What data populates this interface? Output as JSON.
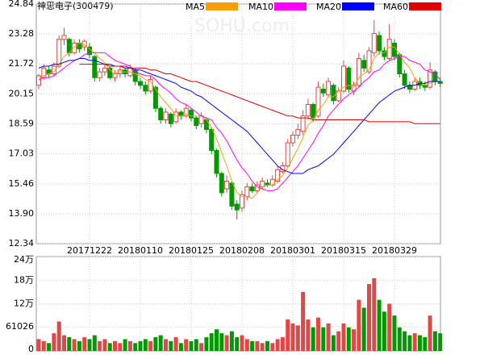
{
  "chart_data": [
    {
      "type": "candlestick",
      "title": "神思电子(300479)",
      "watermark": "SOHU.com",
      "up_color": "#e04848",
      "down_color": "#009a00",
      "grid": true,
      "ylim": [
        12.34,
        24.84
      ],
      "yticks": [
        24.84,
        23.28,
        21.72,
        20.15,
        18.59,
        17.03,
        15.46,
        {
          "value": 13.9,
          "label": "13.90"
        },
        12.34
      ],
      "categories": [
        null,
        null,
        null,
        null,
        null,
        null,
        null,
        null,
        null,
        null,
        "20171222",
        null,
        null,
        null,
        null,
        null,
        null,
        null,
        null,
        null,
        "20180110",
        null,
        null,
        null,
        null,
        null,
        null,
        null,
        null,
        null,
        "20180125",
        null,
        null,
        null,
        null,
        null,
        null,
        null,
        null,
        null,
        "20180208",
        null,
        null,
        null,
        null,
        null,
        null,
        null,
        null,
        null,
        "20180301",
        null,
        null,
        null,
        null,
        null,
        null,
        null,
        null,
        null,
        "20180315",
        null,
        null,
        null,
        null,
        null,
        null,
        null,
        null,
        null,
        "20180329",
        null,
        null,
        null,
        null,
        null,
        null,
        null,
        null,
        null
      ],
      "ohlc": [
        [
          20.6,
          21.2,
          20.4,
          21.1
        ],
        [
          21.0,
          21.7,
          20.9,
          21.5
        ],
        [
          21.4,
          21.6,
          21.0,
          21.2
        ],
        [
          21.2,
          21.8,
          21.1,
          21.6
        ],
        [
          21.6,
          23.2,
          21.5,
          23.0
        ],
        [
          23.0,
          23.6,
          22.7,
          23.2
        ],
        [
          23.0,
          23.1,
          22.1,
          22.3
        ],
        [
          22.3,
          23.0,
          22.2,
          22.8
        ],
        [
          22.8,
          23.0,
          22.3,
          22.5
        ],
        [
          22.6,
          23.0,
          22.4,
          22.9
        ],
        [
          22.6,
          22.8,
          22.0,
          22.2
        ],
        [
          22.1,
          22.2,
          20.8,
          21.0
        ],
        [
          21.0,
          21.5,
          20.8,
          21.3
        ],
        [
          21.3,
          21.7,
          21.1,
          21.5
        ],
        [
          21.5,
          21.6,
          20.9,
          21.0
        ],
        [
          21.0,
          21.4,
          20.8,
          21.2
        ],
        [
          21.2,
          21.6,
          21.0,
          21.4
        ],
        [
          21.4,
          21.5,
          21.0,
          21.2
        ],
        [
          21.1,
          21.7,
          21.0,
          21.5
        ],
        [
          21.4,
          21.5,
          20.6,
          20.8
        ],
        [
          20.8,
          21.0,
          20.4,
          20.6
        ],
        [
          20.6,
          20.8,
          20.1,
          20.3
        ],
        [
          20.3,
          21.1,
          20.2,
          20.9
        ],
        [
          20.5,
          20.6,
          19.2,
          19.4
        ],
        [
          19.4,
          19.5,
          18.6,
          18.8
        ],
        [
          18.8,
          19.4,
          18.6,
          19.2
        ],
        [
          19.1,
          19.2,
          18.4,
          18.6
        ],
        [
          18.7,
          19.4,
          18.6,
          19.2
        ],
        [
          19.2,
          19.3,
          18.8,
          19.0
        ],
        [
          19.0,
          19.6,
          18.9,
          19.4
        ],
        [
          19.3,
          19.4,
          18.7,
          18.9
        ],
        [
          18.9,
          19.0,
          18.3,
          18.5
        ],
        [
          18.6,
          19.2,
          18.4,
          19.0
        ],
        [
          18.8,
          18.9,
          18.1,
          18.3
        ],
        [
          18.3,
          18.4,
          17.0,
          17.2
        ],
        [
          17.2,
          17.3,
          15.8,
          16.0
        ],
        [
          16.0,
          16.1,
          14.8,
          15.0
        ],
        [
          15.2,
          15.9,
          15.0,
          15.6
        ],
        [
          15.5,
          15.6,
          14.1,
          14.3
        ],
        [
          14.4,
          14.6,
          13.6,
          14.1
        ],
        [
          14.2,
          15.1,
          14.0,
          14.9
        ],
        [
          14.8,
          15.5,
          14.6,
          15.3
        ],
        [
          15.3,
          15.5,
          15.0,
          15.1
        ],
        [
          15.1,
          15.6,
          15.0,
          15.4
        ],
        [
          15.3,
          15.8,
          15.2,
          15.6
        ],
        [
          15.5,
          15.7,
          15.3,
          15.4
        ],
        [
          15.4,
          15.9,
          15.3,
          15.7
        ],
        [
          15.6,
          16.4,
          15.5,
          16.2
        ],
        [
          16.1,
          16.6,
          16.0,
          16.4
        ],
        [
          16.4,
          17.8,
          16.3,
          17.6
        ],
        [
          17.6,
          18.2,
          17.4,
          18.0
        ],
        [
          18.0,
          18.6,
          17.8,
          18.3
        ],
        [
          18.2,
          19.3,
          18.0,
          19.0
        ],
        [
          19.0,
          19.9,
          18.8,
          19.6
        ],
        [
          19.6,
          19.7,
          18.7,
          18.9
        ],
        [
          19.0,
          20.8,
          18.9,
          20.5
        ],
        [
          20.4,
          20.7,
          20.0,
          20.2
        ],
        [
          20.1,
          21.0,
          20.0,
          20.8
        ],
        [
          20.6,
          20.7,
          19.6,
          19.8
        ],
        [
          19.8,
          20.5,
          19.7,
          20.3
        ],
        [
          20.3,
          21.9,
          20.2,
          21.6
        ],
        [
          21.5,
          21.6,
          20.2,
          20.4
        ],
        [
          20.3,
          20.8,
          20.1,
          20.6
        ],
        [
          20.6,
          22.3,
          20.5,
          22.0
        ],
        [
          21.9,
          22.2,
          21.3,
          21.5
        ],
        [
          21.3,
          22.6,
          21.2,
          22.4
        ],
        [
          22.3,
          24.0,
          22.1,
          23.3
        ],
        [
          23.2,
          23.4,
          22.2,
          22.4
        ],
        [
          22.4,
          22.6,
          21.9,
          22.1
        ],
        [
          22.0,
          23.8,
          21.9,
          23.0
        ],
        [
          22.8,
          23.0,
          21.9,
          22.1
        ],
        [
          22.2,
          22.3,
          21.0,
          21.2
        ],
        [
          21.2,
          21.4,
          20.4,
          20.6
        ],
        [
          20.6,
          20.8,
          20.2,
          20.4
        ],
        [
          20.4,
          21.0,
          20.3,
          20.8
        ],
        [
          20.8,
          21.0,
          20.4,
          20.6
        ],
        [
          20.6,
          20.8,
          20.3,
          20.5
        ],
        [
          20.5,
          21.8,
          20.4,
          21.4
        ],
        [
          21.3,
          21.4,
          20.6,
          20.8
        ],
        [
          20.8,
          21.0,
          20.5,
          20.7
        ]
      ],
      "series": [
        {
          "name": "MA5",
          "color": "#f5a000",
          "values": [
            21.0,
            21.1,
            21.2,
            21.3,
            21.7,
            22.1,
            22.3,
            22.6,
            22.8,
            22.7,
            22.5,
            22.3,
            22.0,
            21.8,
            21.4,
            21.2,
            21.3,
            21.3,
            21.3,
            21.2,
            21.1,
            20.9,
            20.8,
            20.4,
            20.0,
            19.7,
            19.4,
            19.0,
            19.0,
            19.1,
            19.0,
            19.0,
            19.0,
            18.8,
            18.4,
            17.8,
            17.1,
            16.4,
            15.6,
            15.0,
            14.8,
            14.8,
            14.7,
            15.0,
            15.3,
            15.4,
            15.4,
            15.7,
            15.9,
            16.3,
            16.8,
            17.3,
            17.9,
            18.5,
            18.8,
            19.3,
            19.6,
            20.0,
            20.0,
            20.3,
            20.5,
            20.6,
            20.5,
            21.0,
            21.2,
            21.4,
            22.0,
            22.3,
            22.3,
            22.6,
            22.6,
            22.2,
            21.8,
            21.5,
            21.0,
            20.7,
            20.6,
            20.7,
            20.8,
            20.8
          ]
        },
        {
          "name": "MA10",
          "color": "#ff00ff",
          "values": [
            20.9,
            21.0,
            21.0,
            21.1,
            21.3,
            21.5,
            21.7,
            21.9,
            22.0,
            22.2,
            22.3,
            22.3,
            22.3,
            22.3,
            22.1,
            21.9,
            21.8,
            21.7,
            21.6,
            21.3,
            21.2,
            21.1,
            21.1,
            20.9,
            20.6,
            20.4,
            20.2,
            19.9,
            19.7,
            19.6,
            19.4,
            19.2,
            19.0,
            18.9,
            18.8,
            18.4,
            18.1,
            17.7,
            17.2,
            16.7,
            16.3,
            16.0,
            15.6,
            15.3,
            15.2,
            15.1,
            15.1,
            15.2,
            15.5,
            15.8,
            16.1,
            16.4,
            16.8,
            17.2,
            17.6,
            18.1,
            18.5,
            19.0,
            19.3,
            19.6,
            19.9,
            20.1,
            20.3,
            20.5,
            20.8,
            21.0,
            21.3,
            21.4,
            21.7,
            21.9,
            22.0,
            22.1,
            22.1,
            21.9,
            21.8,
            21.7,
            21.4,
            21.3,
            21.2,
            20.9
          ]
        },
        {
          "name": "MA20",
          "color": "#0000ff",
          "values": [
            21.5,
            21.6,
            21.6,
            21.7,
            21.7,
            21.8,
            21.9,
            21.9,
            22.0,
            22.0,
            21.9,
            21.9,
            21.8,
            21.7,
            21.7,
            21.6,
            21.6,
            21.5,
            21.5,
            21.4,
            21.4,
            21.3,
            21.2,
            21.1,
            21.0,
            20.9,
            20.8,
            20.7,
            20.5,
            20.4,
            20.3,
            20.1,
            20.0,
            19.8,
            19.6,
            19.4,
            19.2,
            19.0,
            18.8,
            18.6,
            18.4,
            18.2,
            17.9,
            17.6,
            17.3,
            17.0,
            16.7,
            16.4,
            16.2,
            16.1,
            16.0,
            16.0,
            16.0,
            16.2,
            16.3,
            16.4,
            16.6,
            16.8,
            17.0,
            17.3,
            17.6,
            17.9,
            18.2,
            18.5,
            18.8,
            19.1,
            19.4,
            19.7,
            19.9,
            20.1,
            20.3,
            20.4,
            20.5,
            20.6,
            20.6,
            20.7,
            20.7,
            20.8,
            20.8,
            20.8
          ]
        },
        {
          "name": "MA60",
          "color": "#e00000",
          "values": [
            null,
            null,
            null,
            null,
            null,
            null,
            null,
            null,
            21.7,
            21.7,
            21.7,
            21.7,
            21.7,
            21.7,
            21.6,
            21.6,
            21.6,
            21.6,
            21.5,
            21.5,
            21.5,
            21.5,
            21.4,
            21.4,
            21.3,
            21.2,
            21.2,
            21.1,
            21.0,
            20.9,
            20.8,
            20.8,
            20.7,
            20.6,
            20.5,
            20.4,
            20.3,
            20.2,
            20.1,
            20.0,
            19.9,
            19.8,
            19.7,
            19.6,
            19.5,
            19.4,
            19.3,
            19.2,
            19.1,
            19.0,
            19.0,
            18.9,
            18.9,
            18.9,
            18.8,
            18.8,
            18.8,
            18.8,
            18.8,
            18.8,
            18.8,
            18.8,
            18.8,
            18.8,
            18.8,
            18.7,
            18.7,
            18.7,
            18.7,
            18.7,
            18.7,
            18.7,
            18.7,
            18.7,
            18.6,
            18.6,
            18.6,
            18.6,
            18.6,
            18.6
          ]
        }
      ]
    },
    {
      "type": "bar",
      "ylim": [
        0,
        240000
      ],
      "yticks": [
        {
          "value": 240000,
          "label": "24万"
        },
        {
          "value": 180000,
          "label": "18万"
        },
        {
          "value": 120000,
          "label": "12万"
        },
        61026,
        0
      ],
      "values": [
        30000,
        25000,
        20000,
        45000,
        75000,
        40000,
        35000,
        30000,
        25000,
        35000,
        30000,
        40000,
        25000,
        30000,
        20000,
        25000,
        20000,
        30000,
        25000,
        20000,
        25000,
        30000,
        25000,
        35000,
        40000,
        30000,
        25000,
        35000,
        20000,
        30000,
        25000,
        30000,
        20000,
        35000,
        45000,
        55000,
        45000,
        40000,
        50000,
        35000,
        40000,
        30000,
        25000,
        25000,
        20000,
        25000,
        20000,
        30000,
        35000,
        80000,
        70000,
        65000,
        150000,
        80000,
        60000,
        85000,
        60000,
        70000,
        40000,
        50000,
        70000,
        60000,
        55000,
        130000,
        110000,
        170000,
        185000,
        130000,
        100000,
        120000,
        90000,
        60000,
        50000,
        40000,
        45000,
        40000,
        35000,
        90000,
        50000,
        45000
      ]
    }
  ]
}
